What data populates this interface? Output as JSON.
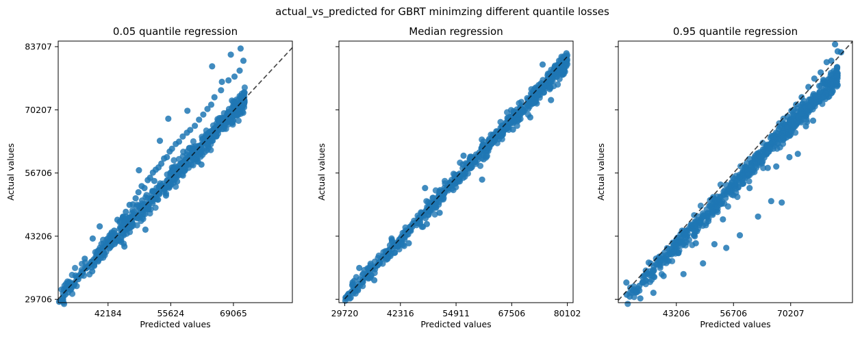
{
  "figure": {
    "suptitle": "actual_vs_predicted for GBRT minimzing different quantile losses"
  },
  "chart_data": [
    {
      "type": "scatter",
      "title": "0.05 quantile regression",
      "xlabel": "Predicted values",
      "ylabel": "Actual values",
      "xticks": [
        42184,
        55624,
        69065
      ],
      "yticks": [
        29706,
        43206,
        56706,
        70207,
        83707
      ],
      "xlim": [
        31500,
        81700
      ],
      "ylim": [
        29000,
        84900
      ],
      "ytick_labels_visible": true,
      "reference_line": {
        "style": "dashed",
        "from": [
          31500,
          29800
        ],
        "to": [
          81700,
          83500
        ]
      },
      "point_color": "#1f77b4",
      "band": {
        "x_range": [
          31700,
          71500
        ],
        "center_slope": 1.065,
        "center_intercept": -3700,
        "spread": 1700
      },
      "series": [
        {
          "values_xy": [
            [
              31700,
              29200
            ],
            [
              32100,
              29400
            ],
            [
              32600,
              30300
            ],
            [
              33000,
              30700
            ],
            [
              33600,
              31200
            ],
            [
              34300,
              32000
            ],
            [
              35000,
              33000
            ],
            [
              35800,
              34000
            ],
            [
              36400,
              34800
            ],
            [
              36800,
              35400
            ],
            [
              37300,
              36500
            ],
            [
              38200,
              37000
            ],
            [
              38700,
              37700
            ],
            [
              39100,
              38200
            ],
            [
              39700,
              38500
            ],
            [
              40300,
              39600
            ],
            [
              41000,
              40600
            ],
            [
              41700,
              41300
            ],
            [
              42300,
              42000
            ],
            [
              42900,
              43700
            ],
            [
              43500,
              44400
            ],
            [
              44200,
              46700
            ],
            [
              44800,
              46400
            ],
            [
              45400,
              47400
            ],
            [
              46000,
              48400
            ],
            [
              46800,
              49900
            ],
            [
              47500,
              50000
            ],
            [
              48100,
              51300
            ],
            [
              48700,
              52600
            ],
            [
              49400,
              53900
            ],
            [
              50000,
              53500
            ],
            [
              50700,
              55200
            ],
            [
              51200,
              55700
            ],
            [
              51800,
              56800
            ],
            [
              52400,
              57400
            ],
            [
              53000,
              57900
            ],
            [
              53600,
              58700
            ],
            [
              54200,
              59800
            ],
            [
              54800,
              60100
            ],
            [
              55400,
              61300
            ],
            [
              55900,
              61900
            ],
            [
              56700,
              62900
            ],
            [
              57400,
              63400
            ],
            [
              58200,
              64500
            ],
            [
              59100,
              65300
            ],
            [
              59800,
              65900
            ],
            [
              60800,
              66800
            ],
            [
              61700,
              68100
            ],
            [
              62600,
              69200
            ],
            [
              63500,
              70400
            ],
            [
              64300,
              71300
            ],
            [
              65000,
              72900
            ],
            [
              66400,
              74400
            ],
            [
              68000,
              76500
            ],
            [
              69300,
              77300
            ],
            [
              70400,
              78600
            ],
            [
              71200,
              80700
            ]
          ]
        },
        {
          "name": "",
          "values_xy": [
            [
              33900,
              33400
            ],
            [
              37200,
              38400
            ],
            [
              38800,
              35700
            ],
            [
              38900,
              42700
            ],
            [
              40400,
              45300
            ],
            [
              45700,
              41000
            ],
            [
              47300,
              46100
            ],
            [
              48800,
              57300
            ],
            [
              50200,
              44600
            ],
            [
              52100,
              55000
            ],
            [
              53300,
              63600
            ],
            [
              54600,
              51900
            ],
            [
              55100,
              68300
            ],
            [
              57000,
              54900
            ],
            [
              59200,
              70000
            ],
            [
              62200,
              58500
            ],
            [
              64500,
              79500
            ],
            [
              66600,
              76200
            ],
            [
              68500,
              82000
            ],
            [
              70600,
              83300
            ]
          ]
        }
      ]
    },
    {
      "type": "scatter",
      "title": "Median regression",
      "xlabel": "Predicted values",
      "ylabel": "Actual values",
      "xticks": [
        29720,
        42316,
        54911,
        67506,
        80102
      ],
      "yticks": [
        29706,
        43206,
        56706,
        70207,
        83707
      ],
      "xlim": [
        28400,
        81400
      ],
      "ylim": [
        29000,
        84900
      ],
      "ytick_labels_visible": false,
      "reference_line": {
        "style": "dashed",
        "from": [
          29700,
          29800
        ],
        "to": [
          80000,
          81500
        ]
      },
      "point_color": "#1f77b4",
      "band": {
        "x_range": [
          29700,
          80100
        ],
        "center_slope": 1.005,
        "center_intercept": 100,
        "spread": 1400
      },
      "series": [
        {
          "values_xy": [
            [
              29900,
              30100
            ],
            [
              30600,
              30900
            ],
            [
              31300,
              31400
            ],
            [
              32100,
              32300
            ],
            [
              32900,
              33000
            ],
            [
              33800,
              33900
            ],
            [
              34600,
              34600
            ],
            [
              35400,
              35700
            ],
            [
              36200,
              36600
            ],
            [
              37200,
              37000
            ],
            [
              38000,
              38300
            ],
            [
              38900,
              39100
            ],
            [
              39700,
              39800
            ],
            [
              40600,
              40500
            ],
            [
              41500,
              41800
            ],
            [
              42300,
              42700
            ],
            [
              43200,
              43300
            ],
            [
              44100,
              44400
            ],
            [
              45000,
              45200
            ],
            [
              45900,
              46000
            ],
            [
              46800,
              47000
            ],
            [
              47700,
              47600
            ],
            [
              48600,
              48700
            ],
            [
              49500,
              49800
            ],
            [
              50300,
              50600
            ],
            [
              51200,
              51400
            ],
            [
              52100,
              52100
            ],
            [
              53000,
              53300
            ],
            [
              53900,
              54100
            ],
            [
              54700,
              55000
            ],
            [
              55600,
              55800
            ],
            [
              56500,
              56500
            ],
            [
              57400,
              57600
            ],
            [
              58300,
              58400
            ],
            [
              59200,
              59100
            ],
            [
              60100,
              60300
            ],
            [
              61000,
              61100
            ],
            [
              61900,
              62100
            ],
            [
              62800,
              62800
            ],
            [
              63700,
              63800
            ],
            [
              64600,
              64600
            ],
            [
              65500,
              65400
            ],
            [
              66400,
              66500
            ],
            [
              67300,
              67500
            ],
            [
              68200,
              68000
            ],
            [
              69100,
              69200
            ],
            [
              70000,
              70100
            ],
            [
              71000,
              71300
            ],
            [
              72200,
              72600
            ],
            [
              73500,
              73400
            ],
            [
              74700,
              75300
            ],
            [
              75800,
              76100
            ],
            [
              76900,
              77300
            ],
            [
              78300,
              79100
            ],
            [
              79400,
              80400
            ]
          ]
        },
        {
          "name": "",
          "values_xy": [
            [
              33000,
              36400
            ],
            [
              36400,
              33800
            ],
            [
              40400,
              42400
            ],
            [
              44200,
              41700
            ],
            [
              48300,
              45800
            ],
            [
              47900,
              53500
            ],
            [
              51200,
              48200
            ],
            [
              56600,
              60400
            ],
            [
              60800,
              55300
            ],
            [
              63600,
              64300
            ],
            [
              67800,
              66000
            ],
            [
              71700,
              68600
            ],
            [
              73200,
              74500
            ],
            [
              74500,
              79900
            ],
            [
              76400,
              72300
            ],
            [
              79900,
              82300
            ]
          ]
        }
      ]
    },
    {
      "type": "scatter",
      "title": "0.95 quantile regression",
      "xlabel": "Predicted values",
      "ylabel": "Actual values",
      "xticks": [
        43206,
        56706,
        70207
      ],
      "yticks": [
        29706,
        43206,
        56706,
        70207,
        83707
      ],
      "xlim": [
        29500,
        84800
      ],
      "ylim": [
        29000,
        84900
      ],
      "ytick_labels_visible": false,
      "reference_line": {
        "style": "dashed",
        "from": [
          29500,
          29500
        ],
        "to": [
          84800,
          84800
        ]
      },
      "point_color": "#1f77b4",
      "band": {
        "x_range": [
          31700,
          81300
        ],
        "center_slope": 0.955,
        "center_intercept": -200,
        "spread": 1600
      },
      "series": [
        {
          "values_xy": [
            [
              31500,
              30700
            ],
            [
              32200,
              30300
            ],
            [
              33000,
              31600
            ],
            [
              33800,
              31400
            ],
            [
              34500,
              32600
            ],
            [
              35200,
              33300
            ],
            [
              36000,
              33700
            ],
            [
              36900,
              34900
            ],
            [
              37800,
              35700
            ],
            [
              38600,
              37200
            ],
            [
              39500,
              37800
            ],
            [
              40500,
              38400
            ],
            [
              41400,
              39300
            ],
            [
              42200,
              40500
            ],
            [
              43100,
              41200
            ],
            [
              44000,
              42000
            ],
            [
              44900,
              43500
            ],
            [
              45900,
              43700
            ],
            [
              46800,
              44800
            ],
            [
              47800,
              45900
            ],
            [
              48800,
              46300
            ],
            [
              49700,
              47700
            ],
            [
              50600,
              48200
            ],
            [
              51500,
              49600
            ],
            [
              52500,
              50200
            ],
            [
              53400,
              50900
            ],
            [
              54300,
              52000
            ],
            [
              55300,
              52700
            ],
            [
              56200,
              54100
            ],
            [
              57200,
              54500
            ],
            [
              58100,
              55800
            ],
            [
              59000,
              56400
            ],
            [
              60000,
              57600
            ],
            [
              60900,
              58300
            ],
            [
              61800,
              59700
            ],
            [
              62700,
              60400
            ],
            [
              63600,
              61300
            ],
            [
              64500,
              62500
            ],
            [
              65500,
              63000
            ],
            [
              66400,
              64800
            ],
            [
              67400,
              66100
            ],
            [
              68400,
              67300
            ],
            [
              69400,
              68800
            ],
            [
              70400,
              70000
            ],
            [
              71500,
              71300
            ],
            [
              72800,
              72900
            ],
            [
              74400,
              75100
            ],
            [
              75800,
              76900
            ],
            [
              77300,
              78200
            ],
            [
              78700,
              80400
            ],
            [
              79800,
              80700
            ],
            [
              81300,
              82700
            ]
          ]
        },
        {
          "name": "",
          "values_xy": [
            [
              31400,
              33300
            ],
            [
              34700,
              29900
            ],
            [
              37800,
              31100
            ],
            [
              40200,
              34700
            ],
            [
              43700,
              39600
            ],
            [
              44900,
              35100
            ],
            [
              47800,
              41700
            ],
            [
              49500,
              37400
            ],
            [
              52200,
              41500
            ],
            [
              54200,
              46800
            ],
            [
              55000,
              40700
            ],
            [
              58200,
              43400
            ],
            [
              60500,
              53500
            ],
            [
              62500,
              47400
            ],
            [
              64800,
              57800
            ],
            [
              65600,
              50700
            ],
            [
              66800,
              58100
            ],
            [
              68100,
              50400
            ],
            [
              69900,
              60100
            ],
            [
              71900,
              60800
            ],
            [
              73800,
              66700
            ],
            [
              75500,
              67900
            ],
            [
              77000,
              72000
            ],
            [
              78600,
              75700
            ],
            [
              80700,
              84200
            ],
            [
              82100,
              82500
            ]
          ]
        }
      ]
    }
  ]
}
